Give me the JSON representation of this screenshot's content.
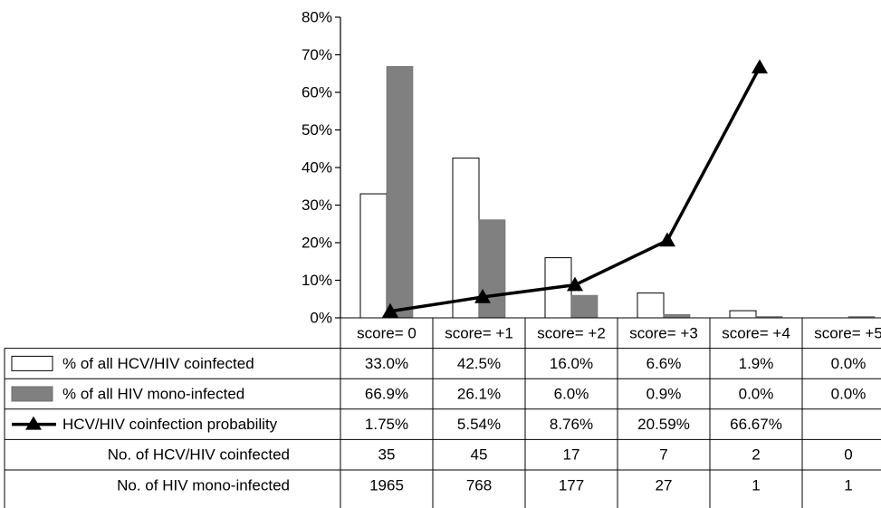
{
  "chart_data": {
    "type": "bar",
    "categories": [
      "score= 0",
      "score= +1",
      "score= +2",
      "score= +3",
      "score= +4",
      "score= +5"
    ],
    "ylim": [
      0,
      80
    ],
    "yticks": [
      0,
      10,
      20,
      30,
      40,
      50,
      60,
      70,
      80
    ],
    "ytick_labels": [
      "0%",
      "10%",
      "20%",
      "30%",
      "40%",
      "50%",
      "60%",
      "70%",
      "80%"
    ],
    "grid": false,
    "legend": "data-table-left",
    "series": [
      {
        "name": "% of all HCV/HIV coinfected",
        "kind": "bar",
        "color": "#ffffff",
        "values": [
          33.0,
          42.5,
          16.0,
          6.6,
          1.9,
          0.0
        ],
        "labels": [
          "33.0%",
          "42.5%",
          "16.0%",
          "6.6%",
          "1.9%",
          "0.0%"
        ]
      },
      {
        "name": "% of all HIV mono-infected",
        "kind": "bar",
        "color": "#808080",
        "values": [
          66.9,
          26.1,
          6.0,
          0.9,
          0.0,
          0.0
        ],
        "labels": [
          "66.9%",
          "26.1%",
          "6.0%",
          "0.9%",
          "0.0%",
          "0.0%"
        ]
      },
      {
        "name": "HCV/HIV coinfection probability",
        "kind": "line",
        "marker": "triangle",
        "color": "#000000",
        "values": [
          1.75,
          5.54,
          8.76,
          20.59,
          66.67,
          null
        ],
        "labels": [
          "1.75%",
          "5.54%",
          "8.76%",
          "20.59%",
          "66.67%",
          ""
        ]
      }
    ],
    "table_rows": [
      {
        "name": "No. of HCV/HIV coinfected",
        "values": [
          "35",
          "45",
          "17",
          "7",
          "2",
          "0"
        ]
      },
      {
        "name": "No. of HIV mono-infected",
        "values": [
          "1965",
          "768",
          "177",
          "27",
          "1",
          "1"
        ]
      }
    ]
  }
}
